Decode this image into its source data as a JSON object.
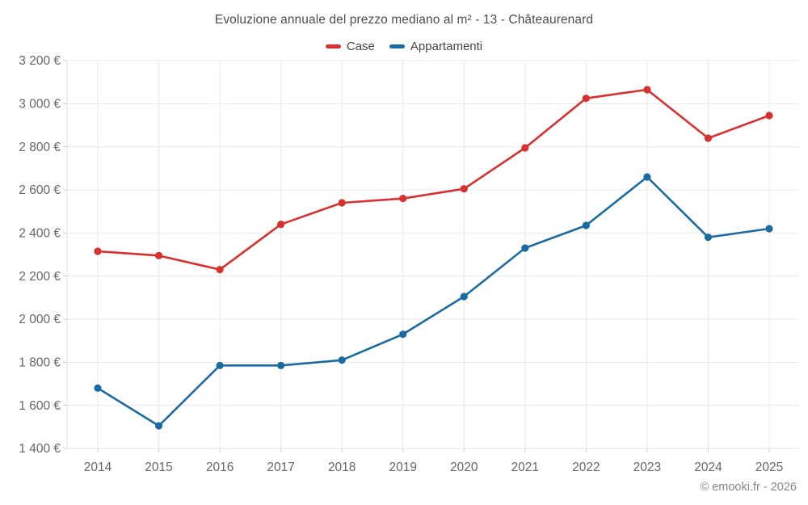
{
  "chart_data": {
    "type": "line",
    "title": "Evoluzione annuale del prezzo mediano al m² - 13 - Châteaurenard",
    "categories": [
      "2014",
      "2015",
      "2016",
      "2017",
      "2018",
      "2019",
      "2020",
      "2021",
      "2022",
      "2023",
      "2024",
      "2025"
    ],
    "series": [
      {
        "name": "Case",
        "color": "#d7302f",
        "values": [
          2315,
          2295,
          2230,
          2440,
          2540,
          2560,
          2605,
          2795,
          3025,
          3065,
          2840,
          2945
        ]
      },
      {
        "name": "Appartamenti",
        "color": "#1b6ba3",
        "values": [
          1680,
          1505,
          1785,
          1785,
          1810,
          1930,
          2105,
          2330,
          2435,
          2660,
          2380,
          2420
        ]
      }
    ],
    "ylim": [
      1400,
      3200
    ],
    "ytick_step": 200,
    "y_tick_labels": [
      "3 200 €",
      "3 000 €",
      "2 800 €",
      "2 600 €",
      "2 400 €",
      "2 200 €",
      "2 000 €",
      "1 800 €",
      "1 600 €",
      "1 400 €"
    ],
    "grid": true,
    "legend_position": "top",
    "xlabel": "",
    "ylabel": ""
  },
  "footer": {
    "copyright": "© emooki.fr - 2026"
  },
  "colors": {
    "grid": "#e8e8e8",
    "axis": "#e2e2e2",
    "tick": "#cccccc",
    "tick_label": "#666666",
    "title": "#4d4d4d",
    "legend_label": "#444444",
    "background": "#ffffff"
  }
}
